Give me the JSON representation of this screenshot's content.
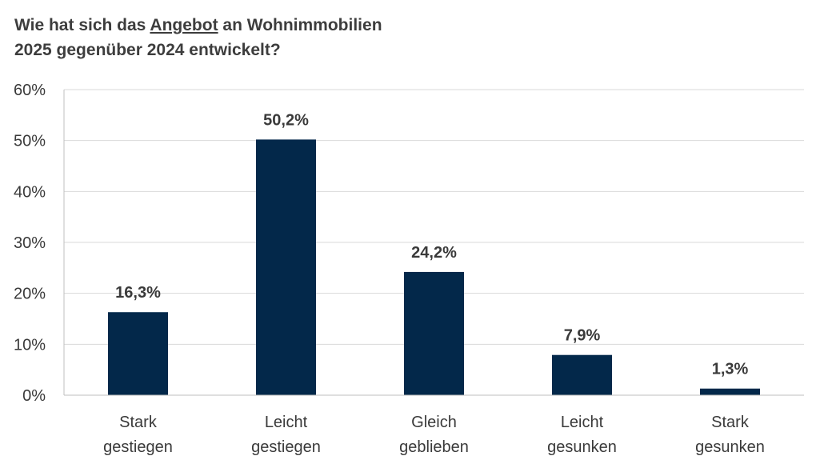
{
  "title": {
    "pre": "Wie hat sich das ",
    "underlined": "Angebot",
    "post": " an Wohnimmobilien",
    "line2": "2025 gegenüber 2024 entwickelt?"
  },
  "chart_data": {
    "type": "bar",
    "title": "Wie hat sich das Angebot an Wohnimmobilien 2025 gegenüber 2024 entwickelt?",
    "categories": [
      [
        "Stark",
        "gestiegen"
      ],
      [
        "Leicht",
        "gestiegen"
      ],
      [
        "Gleich",
        "geblieben"
      ],
      [
        "Leicht",
        "gesunken"
      ],
      [
        "Stark",
        "gesunken"
      ]
    ],
    "values": [
      16.3,
      50.2,
      24.2,
      7.9,
      1.3
    ],
    "data_labels": [
      "16,3%",
      "50,2%",
      "24,2%",
      "7,9%",
      "1,3%"
    ],
    "yticks": [
      "0%",
      "10%",
      "20%",
      "30%",
      "40%",
      "50%",
      "60%"
    ],
    "ylim": [
      0,
      60
    ],
    "grid": true,
    "bar_color": "#03284a",
    "grid_color": "#d9d9d9",
    "axis_color": "#bfbfbf"
  }
}
